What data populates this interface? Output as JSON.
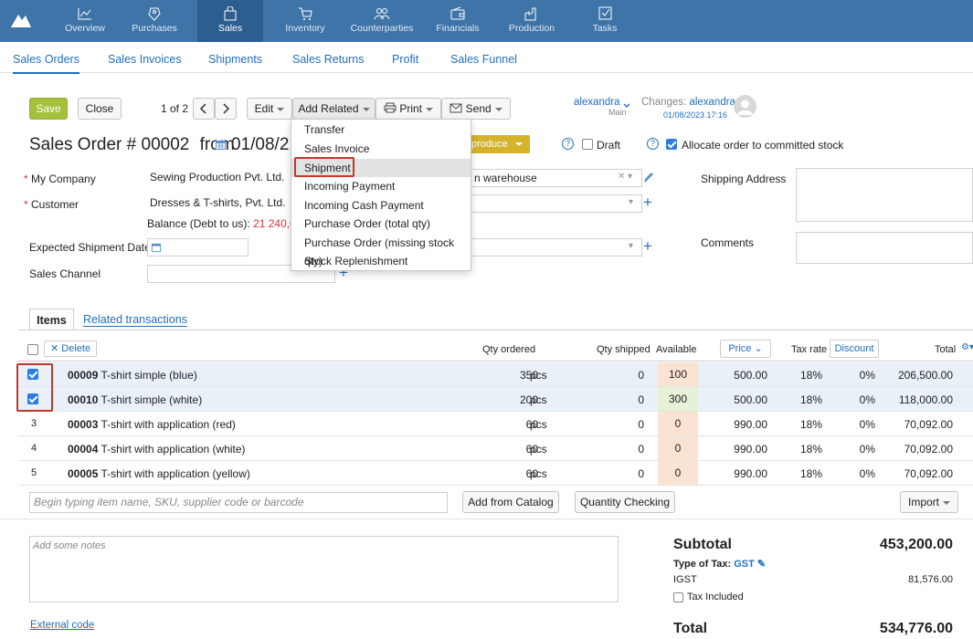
{
  "nav": {
    "items": [
      {
        "label": "Overview",
        "icon": "chart-line-icon"
      },
      {
        "label": "Purchases",
        "icon": "tag-icon"
      },
      {
        "label": "Sales",
        "icon": "shopping-bag-icon"
      },
      {
        "label": "Inventory",
        "icon": "cart-icon"
      },
      {
        "label": "Counterparties",
        "icon": "people-icon"
      },
      {
        "label": "Financials",
        "icon": "wallet-icon"
      },
      {
        "label": "Production",
        "icon": "factory-icon"
      },
      {
        "label": "Tasks",
        "icon": "checkbox-icon"
      }
    ]
  },
  "subnav": [
    "Sales Orders",
    "Sales Invoices",
    "Shipments",
    "Sales Returns",
    "Profit",
    "Sales Funnel"
  ],
  "toolbar": {
    "save": "Save",
    "close": "Close",
    "pager": "1 of 2",
    "edit": "Edit",
    "add_related": "Add Related",
    "print": "Print",
    "send": "Send"
  },
  "user": {
    "name": "alexandra",
    "sub": "Main"
  },
  "changes": {
    "label": "Changes:",
    "user": "alexandra",
    "date": "01/08/2023 17:16"
  },
  "header": {
    "title": "Sales Order #",
    "number": "00002",
    "from": "from",
    "date": "01/08/20",
    "produce": "produce",
    "draft": "Draft",
    "allocate": "Allocate order to committed stock"
  },
  "dropdown": [
    "Transfer",
    "Sales Invoice",
    "Shipment",
    "Incoming Payment",
    "Incoming Cash Payment",
    "Purchase Order (total qty)",
    "Purchase Order (missing stock qty)",
    "Stock Replenishment"
  ],
  "form": {
    "my_company_label": "My Company",
    "my_company": "Sewing Production Pvt. Ltd.",
    "warehouse": "n warehouse",
    "customer_label": "Customer",
    "customer": "Dresses & T-shirts, Pvt. Ltd.",
    "balance_label": "Balance (Debt to us):",
    "balance_value": "21 240,00",
    "expected_label": "Expected Shipment Date",
    "channel_label": "Sales Channel",
    "shipping_label": "Shipping Address",
    "comments_label": "Comments"
  },
  "tabs": {
    "items": "Items",
    "related": "Related transactions"
  },
  "table": {
    "delete": "Delete",
    "headers": {
      "qty_ordered": "Qty ordered",
      "qty_shipped": "Qty shipped",
      "available": "Available",
      "price": "Price",
      "tax_rate": "Tax rate",
      "discount": "Discount",
      "total": "Total"
    },
    "rows": [
      {
        "index": "",
        "code": "00009",
        "name": "T-shirt simple (blue)",
        "qty": "350",
        "unit": "pcs",
        "shipped": "0",
        "available": "100",
        "avail_color": "#fbe3d3",
        "price": "500.00",
        "tax": "18%",
        "discount": "0%",
        "total": "206,500.00",
        "checked": true
      },
      {
        "index": "",
        "code": "00010",
        "name": "T-shirt simple (white)",
        "qty": "200",
        "unit": "pcs",
        "shipped": "0",
        "available": "300",
        "avail_color": "#e6f1d8",
        "price": "500.00",
        "tax": "18%",
        "discount": "0%",
        "total": "118,000.00",
        "checked": true
      },
      {
        "index": "3",
        "code": "00003",
        "name": "T-shirt with application (red)",
        "qty": "60",
        "unit": "pcs",
        "shipped": "0",
        "available": "0",
        "avail_color": "#fbe3d3",
        "price": "990.00",
        "tax": "18%",
        "discount": "0%",
        "total": "70,092.00",
        "checked": false
      },
      {
        "index": "4",
        "code": "00004",
        "name": "T-shirt with application (white)",
        "qty": "60",
        "unit": "pcs",
        "shipped": "0",
        "available": "0",
        "avail_color": "#fbe3d3",
        "price": "990.00",
        "tax": "18%",
        "discount": "0%",
        "total": "70,092.00",
        "checked": false
      },
      {
        "index": "5",
        "code": "00005",
        "name": "T-shirt with application (yellow)",
        "qty": "60",
        "unit": "pcs",
        "shipped": "0",
        "available": "0",
        "avail_color": "#fbe3d3",
        "price": "990.00",
        "tax": "18%",
        "discount": "0%",
        "total": "70,092.00",
        "checked": false
      }
    ],
    "search_placeholder": "Begin typing item name, SKU, supplier code or barcode",
    "add_catalog": "Add from Catalog",
    "qty_check": "Quantity Checking",
    "import": "Import"
  },
  "footer": {
    "notes_placeholder": "Add some notes",
    "external_code": "External code",
    "subtotal_label": "Subtotal",
    "subtotal": "453,200.00",
    "tax_type_label": "Type of Tax:",
    "tax_type": "GST",
    "igst_label": "IGST",
    "igst": "81,576.00",
    "tax_included": "Tax Included",
    "total_label": "Total",
    "total": "534,776.00"
  },
  "colors": {
    "nav_bg": "#3f74a8",
    "nav_active": "#2d5e90",
    "link": "#1f6fbf",
    "save": "#a3c13b",
    "produce": "#d4b22a",
    "highlight": "#c0392b"
  }
}
